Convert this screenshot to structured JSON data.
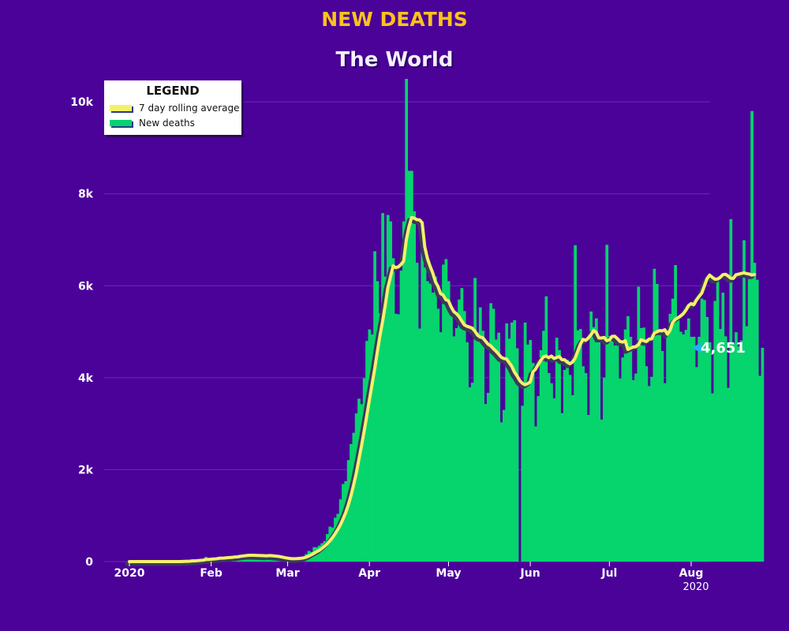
{
  "title": "NEW DEATHS",
  "subtitle": "The World",
  "legend": {
    "title": "LEGEND",
    "items": [
      {
        "label": "7 day rolling average",
        "color": "#f5f06a"
      },
      {
        "label": "New deaths",
        "color": "#06d46c"
      }
    ]
  },
  "colors": {
    "background": "#4b0299",
    "bars": "#06d46c",
    "line": "#f5f06a",
    "line_shadow": "#3a3a5a",
    "title": "#ffc21a",
    "callout_marker": "#19b8e6"
  },
  "callout": {
    "label": "4,651",
    "value": 4651
  },
  "chart_data": {
    "type": "bar",
    "title": "NEW DEATHS",
    "subtitle": "The World",
    "start_date": "2020-01-01",
    "end_date": "2020-07-28",
    "x_range": [
      "2020-01-01",
      "2020-08-01"
    ],
    "ylim": [
      0,
      10500
    ],
    "y_ticks": [
      0,
      2000,
      4000,
      6000,
      8000,
      10000
    ],
    "y_tick_labels": [
      "0",
      "2k",
      "4k",
      "6k",
      "8k",
      "10k"
    ],
    "x_ticks": [
      {
        "date": "2020-01-01",
        "label": "2020"
      },
      {
        "date": "2020-02-01",
        "label": "Feb"
      },
      {
        "date": "2020-03-01",
        "label": "Mar"
      },
      {
        "date": "2020-04-01",
        "label": "Apr"
      },
      {
        "date": "2020-05-01",
        "label": "May"
      },
      {
        "date": "2020-06-01",
        "label": "Jun"
      },
      {
        "date": "2020-07-01",
        "label": "Jul"
      },
      {
        "date": "2020-08-01",
        "label": "Aug"
      }
    ],
    "x_axis_year": "2020",
    "grid": true,
    "legend_position": "top-left",
    "series": [
      {
        "name": "New deaths",
        "kind": "bar",
        "values": [
          0,
          0,
          0,
          0,
          0,
          0,
          0,
          0,
          0,
          0,
          1,
          0,
          1,
          0,
          0,
          0,
          1,
          3,
          0,
          1,
          8,
          16,
          14,
          26,
          49,
          2,
          38,
          42,
          46,
          103,
          46,
          45,
          57,
          64,
          66,
          73,
          72,
          86,
          89,
          97,
          108,
          97,
          146,
          121,
          143,
          142,
          105,
          98,
          136,
          114,
          118,
          109,
          97,
          150,
          71,
          64,
          87,
          53,
          65,
          41,
          48,
          80,
          72,
          74,
          96,
          99,
          96,
          164,
          232,
          211,
          314,
          311,
          348,
          399,
          447,
          599,
          762,
          741,
          955,
          1039,
          1353,
          1688,
          1750,
          2207,
          2558,
          2802,
          3223,
          3544,
          3426,
          3990,
          4800,
          5050,
          4940,
          6750,
          6100,
          5400,
          7580,
          6200,
          7540,
          7400,
          6600,
          5390,
          5380,
          6330,
          7400,
          10500,
          8500,
          8500,
          7620,
          6500,
          5070,
          6750,
          6400,
          6100,
          6050,
          5850,
          6200,
          5500,
          4990,
          6460,
          6580,
          6100,
          5500,
          4900,
          5080,
          5700,
          5950,
          5450,
          4770,
          3790,
          3890,
          6170,
          4980,
          5530,
          5020,
          3430,
          3670,
          5620,
          5500,
          4830,
          4980,
          3030,
          3300,
          5180,
          4850,
          5200,
          5250,
          4640,
          0,
          3390,
          5200,
          4720,
          4820,
          4320,
          2940,
          3600,
          4600,
          5020,
          5770,
          4100,
          3880,
          3550,
          4870,
          4600,
          3230,
          4170,
          4390,
          4060,
          3620,
          6880,
          5030,
          5060,
          4250,
          4100,
          3190,
          5440,
          5100,
          5290,
          4830,
          3090,
          4000,
          6890,
          4910,
          4880,
          4700,
          4810,
          3980,
          4440,
          5050,
          5340,
          4890,
          3950,
          4090,
          5980,
          5080,
          5090,
          4250,
          3820,
          4020,
          6370,
          6040,
          4960,
          4580,
          3880,
          4940,
          5390,
          5720,
          6450,
          5330,
          5000,
          4940,
          5040,
          5290,
          4890,
          4890,
          4230,
          4890,
          5720,
          5690,
          5320,
          4770,
          3660,
          5670,
          6100,
          5060,
          5850,
          4900,
          3780,
          7450,
          4750,
          4990,
          4680,
          4810,
          6990,
          5120,
          6200,
          9800,
          6500,
          6130,
          4040,
          4651
        ],
        "color": "#06d46c"
      },
      {
        "name": "7 day rolling average",
        "kind": "line",
        "values": [
          0,
          0,
          0,
          0,
          0,
          0,
          0,
          0,
          0,
          0,
          0,
          0,
          0,
          0,
          0,
          0,
          0,
          1,
          1,
          1,
          2,
          4,
          6,
          9,
          16,
          16,
          22,
          27,
          31,
          45,
          47,
          52,
          57,
          61,
          72,
          76,
          78,
          84,
          88,
          92,
          100,
          103,
          114,
          121,
          128,
          135,
          137,
          137,
          136,
          132,
          131,
          128,
          124,
          131,
          129,
          122,
          117,
          109,
          97,
          85,
          75,
          67,
          63,
          64,
          67,
          73,
          80,
          96,
          120,
          148,
          182,
          215,
          245,
          288,
          333,
          386,
          448,
          521,
          605,
          697,
          798,
          928,
          1063,
          1234,
          1430,
          1664,
          1918,
          2215,
          2514,
          2836,
          3172,
          3515,
          3855,
          4188,
          4561,
          4913,
          5223,
          5574,
          5961,
          6195,
          6430,
          6395,
          6412,
          6462,
          6538,
          7000,
          7280,
          7484,
          7470,
          7437,
          7434,
          7372,
          6845,
          6596,
          6427,
          6282,
          6094,
          5985,
          5829,
          5795,
          5697,
          5672,
          5539,
          5438,
          5393,
          5329,
          5236,
          5150,
          5118,
          5101,
          5076,
          5013,
          4926,
          4884,
          4867,
          4798,
          4729,
          4693,
          4630,
          4577,
          4512,
          4444,
          4417,
          4407,
          4327,
          4246,
          4122,
          4037,
          3938,
          3878,
          3848,
          3870,
          3910,
          4126,
          4186,
          4286,
          4378,
          4453,
          4470,
          4436,
          4470,
          4417,
          4440,
          4460,
          4392,
          4390,
          4337,
          4304,
          4340,
          4425,
          4577,
          4727,
          4834,
          4812,
          4861,
          4932,
          5025,
          4985,
          4863,
          4864,
          4876,
          4806,
          4822,
          4898,
          4903,
          4851,
          4789,
          4774,
          4804,
          4614,
          4641,
          4667,
          4673,
          4718,
          4826,
          4806,
          4786,
          4837,
          4844,
          4969,
          4999,
          5024,
          5019,
          5043,
          4947,
          5031,
          5202,
          5268,
          5304,
          5343,
          5390,
          5467,
          5568,
          5612,
          5587,
          5689,
          5767,
          5837,
          5993,
          6151,
          6232,
          6184,
          6143,
          6147,
          6180,
          6240,
          6250,
          6212,
          6163,
          6160,
          6240,
          6252,
          6268,
          6280,
          6265,
          6255,
          6233,
          6246
        ]
      }
    ]
  }
}
